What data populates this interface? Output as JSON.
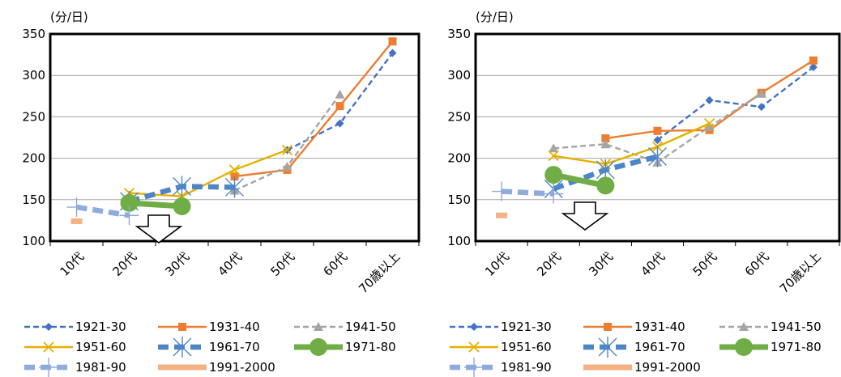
{
  "chart_data": [
    {
      "type": "line",
      "unit_label": "(分/日)",
      "categories": [
        "10代",
        "20代",
        "30代",
        "40代",
        "50代",
        "60代",
        "70歳以上"
      ],
      "yticks": [
        100,
        150,
        200,
        250,
        300,
        350
      ],
      "ylim": [
        100,
        350
      ],
      "grid": true,
      "legend_position": "bottom",
      "annotation": "down-arrow",
      "series": [
        {
          "name": "1921-30",
          "color": "#4472C4",
          "style": "dashed",
          "marker": "diamond",
          "values": [
            null,
            null,
            null,
            null,
            210,
            242,
            327
          ]
        },
        {
          "name": "1931-40",
          "color": "#ED7D31",
          "style": "solid",
          "marker": "square",
          "values": [
            null,
            null,
            null,
            178,
            186,
            263,
            341
          ]
        },
        {
          "name": "1941-50",
          "color": "#A5A5A5",
          "style": "dashed",
          "marker": "triangle",
          "values": [
            null,
            null,
            null,
            161,
            190,
            277,
            null
          ]
        },
        {
          "name": "1951-60",
          "color": "#E6B000",
          "style": "solid",
          "marker": "x",
          "values": [
            null,
            158,
            154,
            186,
            210,
            null,
            null
          ]
        },
        {
          "name": "1961-70",
          "color": "#4C86C6",
          "style": "thickdash",
          "marker": "star",
          "values": [
            null,
            148,
            166,
            165,
            null,
            null,
            null
          ]
        },
        {
          "name": "1971-80",
          "color": "#70AD47",
          "style": "thick",
          "marker": "circle",
          "values": [
            null,
            146,
            142,
            null,
            null,
            null,
            null
          ]
        },
        {
          "name": "1981-90",
          "color": "#8FAADC",
          "style": "thickdash",
          "marker": "plus",
          "values": [
            141,
            131,
            null,
            null,
            null,
            null,
            null
          ]
        },
        {
          "name": "1991-2000",
          "color": "#F4B183",
          "style": "thick",
          "marker": "bar",
          "values": [
            124,
            null,
            null,
            null,
            null,
            null,
            null
          ]
        }
      ]
    },
    {
      "type": "line",
      "unit_label": "(分/日)",
      "categories": [
        "10代",
        "20代",
        "30代",
        "40代",
        "50代",
        "60代",
        "70歳以上"
      ],
      "yticks": [
        100,
        150,
        200,
        250,
        300,
        350
      ],
      "ylim": [
        100,
        350
      ],
      "grid": true,
      "legend_position": "bottom",
      "annotation": "down-arrow",
      "series": [
        {
          "name": "1921-30",
          "color": "#4472C4",
          "style": "dashed",
          "marker": "diamond",
          "values": [
            null,
            null,
            null,
            222,
            270,
            262,
            310
          ]
        },
        {
          "name": "1931-40",
          "color": "#ED7D31",
          "style": "solid",
          "marker": "square",
          "values": [
            null,
            null,
            224,
            233,
            234,
            279,
            318
          ]
        },
        {
          "name": "1941-50",
          "color": "#A5A5A5",
          "style": "dashed",
          "marker": "triangle",
          "values": [
            null,
            212,
            217,
            195,
            238,
            278,
            null
          ]
        },
        {
          "name": "1951-60",
          "color": "#E6B000",
          "style": "solid",
          "marker": "x",
          "values": [
            null,
            203,
            193,
            214,
            242,
            null,
            null
          ]
        },
        {
          "name": "1961-70",
          "color": "#4C86C6",
          "style": "thickdash",
          "marker": "star",
          "values": [
            null,
            163,
            186,
            202,
            null,
            null,
            null
          ]
        },
        {
          "name": "1971-80",
          "color": "#70AD47",
          "style": "thick",
          "marker": "circle",
          "values": [
            null,
            180,
            167,
            null,
            null,
            null,
            null
          ]
        },
        {
          "name": "1981-90",
          "color": "#8FAADC",
          "style": "thickdash",
          "marker": "plus",
          "values": [
            160,
            157,
            null,
            null,
            null,
            null,
            null
          ]
        },
        {
          "name": "1991-2000",
          "color": "#F4B183",
          "style": "thick",
          "marker": "bar",
          "values": [
            131,
            null,
            null,
            null,
            null,
            null,
            null
          ]
        }
      ]
    }
  ]
}
